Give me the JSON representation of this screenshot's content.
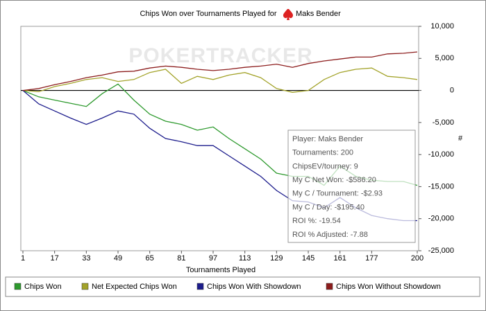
{
  "chart_data": {
    "type": "line",
    "title": "Chips Won over Tournaments Played for",
    "player": "Maks Bender",
    "watermark": "POKERTRACKER",
    "xlabel": "Tournaments Played",
    "ylabel": "#",
    "xlim": [
      1,
      200
    ],
    "xticks": [
      1,
      17,
      33,
      49,
      65,
      81,
      97,
      113,
      129,
      145,
      161,
      177,
      200
    ],
    "ylim": [
      -25000,
      10000
    ],
    "yticks": [
      {
        "value": 10000,
        "label": "10,000"
      },
      {
        "value": 5000,
        "label": "5,000"
      },
      0,
      {
        "value": -5000,
        "label": "-5,000"
      },
      {
        "value": -10000,
        "label": "-10,000"
      },
      {
        "value": -15000,
        "label": "-15,000"
      },
      {
        "value": -20000,
        "label": "-20,000"
      },
      {
        "value": -25000,
        "label": "-25,000"
      }
    ],
    "x": [
      1,
      9,
      17,
      25,
      33,
      41,
      49,
      57,
      65,
      73,
      81,
      89,
      97,
      105,
      113,
      121,
      129,
      137,
      145,
      153,
      161,
      169,
      177,
      185,
      193,
      200
    ],
    "series": [
      {
        "name": "Chips Won",
        "color": "#2e9a2e",
        "values": [
          0,
          -1000,
          -1500,
          -2000,
          -2500,
          -500,
          1000,
          -1500,
          -3700,
          -4800,
          -5300,
          -6200,
          -5700,
          -7500,
          -9100,
          -10700,
          -12900,
          -13400,
          -13400,
          -14800,
          -11800,
          -13400,
          -14000,
          -14200,
          -14200,
          -14800
        ]
      },
      {
        "name": "Net Expected Chips Won",
        "color": "#a3a32a",
        "values": [
          0,
          -200,
          600,
          1100,
          1700,
          2000,
          1400,
          1700,
          2800,
          3300,
          1100,
          2200,
          1700,
          2400,
          2800,
          2000,
          300,
          -300,
          0,
          1700,
          2800,
          3300,
          3500,
          2200,
          2000,
          1700
        ]
      },
      {
        "name": "Chips Won With Showdown",
        "color": "#1c1c8c",
        "values": [
          0,
          -2100,
          -3200,
          -4300,
          -5300,
          -4300,
          -3200,
          -3700,
          -5900,
          -7500,
          -8000,
          -8600,
          -8600,
          -10200,
          -11800,
          -13400,
          -15600,
          -17200,
          -17400,
          -18300,
          -16700,
          -18300,
          -19500,
          -20000,
          -20300,
          -20300
        ]
      },
      {
        "name": "Chips Won Without Showdown",
        "color": "#8c1c1c",
        "values": [
          0,
          300,
          900,
          1400,
          2000,
          2400,
          2900,
          3000,
          3500,
          3800,
          3600,
          3300,
          3100,
          3300,
          3600,
          3800,
          4100,
          3600,
          4200,
          4600,
          4900,
          5200,
          5200,
          5700,
          5800,
          6000
        ]
      }
    ],
    "tooltip": [
      "Player: Maks Bender",
      "Tournaments: 200",
      "ChipsEV/tourney: 9",
      "My C Net Won: -$586.20",
      "My C / Tournament: -$2.93",
      "My C / Day: -$195.40",
      "ROI %: -19.54",
      "ROI % Adjusted: -7.88"
    ]
  }
}
